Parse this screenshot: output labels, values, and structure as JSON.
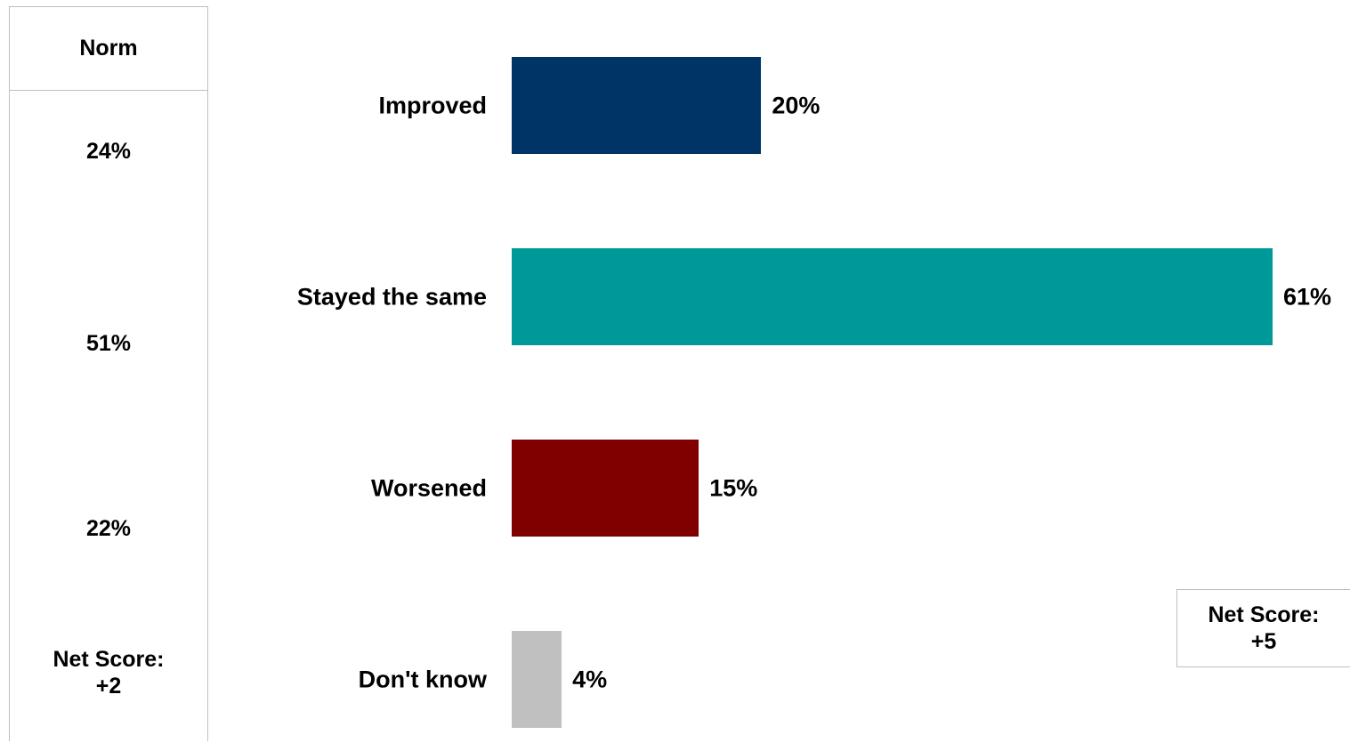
{
  "norm": {
    "header": "Norm",
    "values": [
      "24%",
      "51%",
      "22%"
    ],
    "net_label": "Net Score:",
    "net_value": "+2"
  },
  "net_score": {
    "label": "Net Score:",
    "value": "+5"
  },
  "chart_data": {
    "type": "bar",
    "orientation": "horizontal",
    "categories": [
      "Improved",
      "Stayed the same",
      "Worsened",
      "Don't know"
    ],
    "values": [
      20,
      61,
      15,
      4
    ],
    "value_labels": [
      "20%",
      "61%",
      "15%",
      "4%"
    ],
    "colors": [
      "#003366",
      "#009999",
      "#800000",
      "#c0c0c0"
    ],
    "xlim": [
      0,
      61
    ],
    "grid": false
  }
}
